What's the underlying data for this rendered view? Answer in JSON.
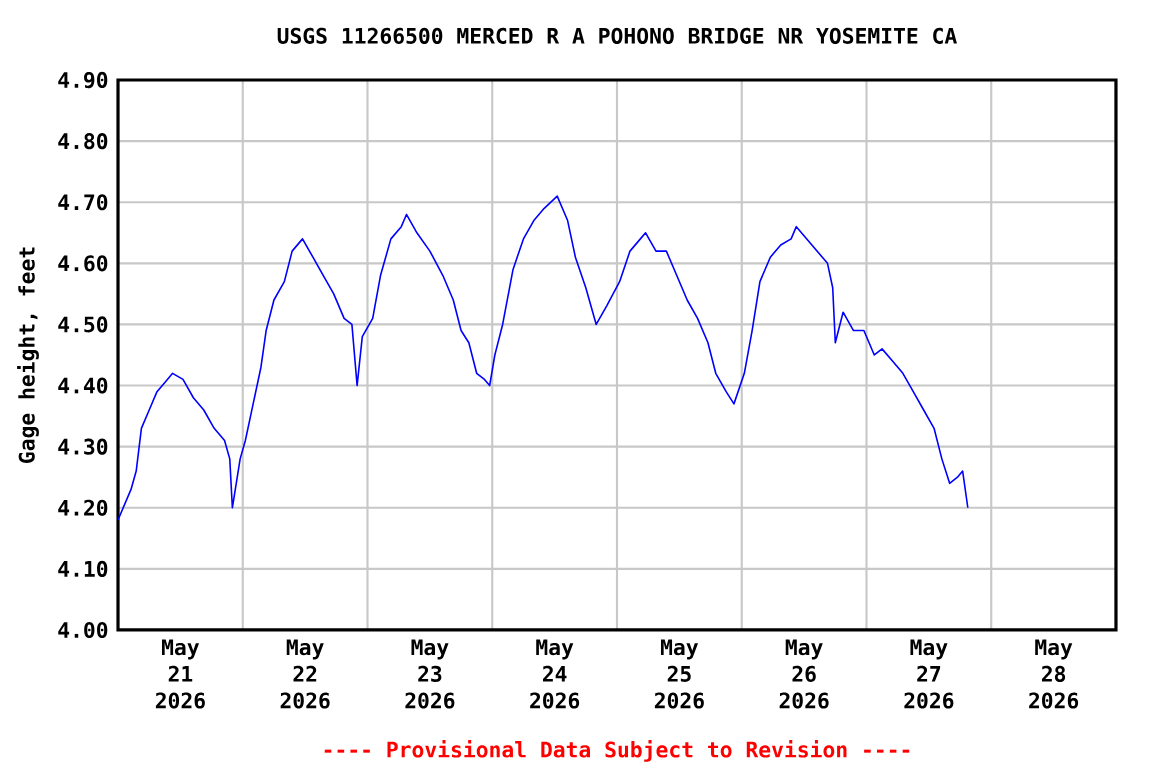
{
  "chart_data": {
    "type": "line",
    "title": "USGS 11266500 MERCED R A POHONO BRIDGE NR YOSEMITE CA",
    "ylabel": "Gage height, feet",
    "annotations": [
      "---- Provisional Data Subject to Revision ----"
    ],
    "xlim": [
      "2026-05-21T00:00",
      "2026-05-29T00:00"
    ],
    "xticks": [
      {
        "value": "2026-05-21T00:00",
        "label": null
      },
      {
        "value": "2026-05-22T00:00",
        "label": null
      },
      {
        "value": "2026-05-23T00:00",
        "label": null
      },
      {
        "value": "2026-05-24T00:00",
        "label": null
      },
      {
        "value": "2026-05-25T00:00",
        "label": null
      },
      {
        "value": "2026-05-26T00:00",
        "label": null
      },
      {
        "value": "2026-05-27T00:00",
        "label": null
      },
      {
        "value": "2026-05-28T00:00",
        "label": null
      },
      {
        "value": "2026-05-29T00:00",
        "label": null
      },
      {
        "value": "2026-05-21T12:00",
        "label": "May 21 2026"
      },
      {
        "value": "2026-05-22T12:00",
        "label": "May 22 2026"
      },
      {
        "value": "2026-05-23T12:00",
        "label": "May 23 2026"
      },
      {
        "value": "2026-05-24T12:00",
        "label": "May 24 2026"
      },
      {
        "value": "2026-05-25T12:00",
        "label": "May 25 2026"
      },
      {
        "value": "2026-05-26T12:00",
        "label": "May 26 2026"
      },
      {
        "value": "2026-05-27T12:00",
        "label": "May 27 2026"
      },
      {
        "value": "2026-05-28T12:00",
        "label": "May 28 2026"
      }
    ],
    "ylim": [
      4.0,
      4.9
    ],
    "yticks": [
      {
        "value": 4.0,
        "label": "4.00"
      },
      {
        "value": 4.1,
        "label": "4.10"
      },
      {
        "value": 4.2,
        "label": "4.20"
      },
      {
        "value": 4.3,
        "label": "4.30"
      },
      {
        "value": 4.4,
        "label": "4.40"
      },
      {
        "value": 4.5,
        "label": "4.50"
      },
      {
        "value": 4.6,
        "label": "4.60"
      },
      {
        "value": 4.7,
        "label": "4.70"
      },
      {
        "value": 4.8,
        "label": "4.80"
      },
      {
        "value": 4.9,
        "label": "4.90"
      }
    ],
    "grid": true,
    "marker": "none",
    "line_style": "solid",
    "series": [
      {
        "color": "#0000ff",
        "x": [
          "2026-05-21T00:00",
          "2026-05-21T02:30",
          "2026-05-21T03:30",
          "2026-05-21T04:30",
          "2026-05-21T06:00",
          "2026-05-21T07:30",
          "2026-05-21T09:30",
          "2026-05-21T10:30",
          "2026-05-21T12:30",
          "2026-05-21T14:30",
          "2026-05-21T16:30",
          "2026-05-21T18:30",
          "2026-05-21T20:30",
          "2026-05-21T21:30",
          "2026-05-21T22:00",
          "2026-05-21T23:30",
          "2026-05-22T00:30",
          "2026-05-22T02:00",
          "2026-05-22T03:30",
          "2026-05-22T04:30",
          "2026-05-22T06:00",
          "2026-05-22T08:00",
          "2026-05-22T09:30",
          "2026-05-22T11:30",
          "2026-05-22T13:30",
          "2026-05-22T15:30",
          "2026-05-22T17:30",
          "2026-05-22T19:30",
          "2026-05-22T21:00",
          "2026-05-22T22:00",
          "2026-05-22T23:00",
          "2026-05-23T01:00",
          "2026-05-23T02:30",
          "2026-05-23T04:30",
          "2026-05-23T06:30",
          "2026-05-23T07:30",
          "2026-05-23T09:30",
          "2026-05-23T12:00",
          "2026-05-23T14:30",
          "2026-05-23T16:30",
          "2026-05-23T18:00",
          "2026-05-23T19:30",
          "2026-05-23T21:00",
          "2026-05-23T22:30",
          "2026-05-23T23:30",
          "2026-05-24T00:30",
          "2026-05-24T02:00",
          "2026-05-24T04:00",
          "2026-05-24T06:00",
          "2026-05-24T08:00",
          "2026-05-24T10:00",
          "2026-05-24T12:30",
          "2026-05-24T14:30",
          "2026-05-24T16:00",
          "2026-05-24T18:00",
          "2026-05-24T20:00",
          "2026-05-24T22:00",
          "2026-05-25T00:30",
          "2026-05-25T02:30",
          "2026-05-25T04:30",
          "2026-05-25T05:30",
          "2026-05-25T07:30",
          "2026-05-25T09:30",
          "2026-05-25T11:30",
          "2026-05-25T13:30",
          "2026-05-25T15:30",
          "2026-05-25T17:30",
          "2026-05-25T19:00",
          "2026-05-25T21:00",
          "2026-05-25T22:30",
          "2026-05-26T00:30",
          "2026-05-26T02:00",
          "2026-05-26T03:30",
          "2026-05-26T05:30",
          "2026-05-26T07:30",
          "2026-05-26T09:30",
          "2026-05-26T10:30",
          "2026-05-26T12:30",
          "2026-05-26T14:30",
          "2026-05-26T16:30",
          "2026-05-26T17:30",
          "2026-05-26T18:00",
          "2026-05-26T19:30",
          "2026-05-26T21:30",
          "2026-05-26T23:30",
          "2026-05-27T01:30",
          "2026-05-27T03:00",
          "2026-05-27T05:00",
          "2026-05-27T07:00",
          "2026-05-27T09:00",
          "2026-05-27T11:00",
          "2026-05-27T13:00",
          "2026-05-27T14:30",
          "2026-05-27T16:00",
          "2026-05-27T17:30",
          "2026-05-27T18:30",
          "2026-05-27T19:30"
        ],
        "values": [
          4.18,
          4.23,
          4.26,
          4.33,
          4.36,
          4.39,
          4.41,
          4.42,
          4.41,
          4.38,
          4.36,
          4.33,
          4.31,
          4.28,
          4.2,
          4.28,
          4.31,
          4.37,
          4.43,
          4.49,
          4.54,
          4.57,
          4.62,
          4.64,
          4.61,
          4.58,
          4.55,
          4.51,
          4.5,
          4.4,
          4.48,
          4.51,
          4.58,
          4.64,
          4.66,
          4.68,
          4.65,
          4.62,
          4.58,
          4.54,
          4.49,
          4.47,
          4.42,
          4.41,
          4.4,
          4.45,
          4.5,
          4.59,
          4.64,
          4.67,
          4.69,
          4.71,
          4.67,
          4.61,
          4.56,
          4.5,
          4.53,
          4.57,
          4.62,
          4.64,
          4.65,
          4.62,
          4.62,
          4.58,
          4.54,
          4.51,
          4.47,
          4.42,
          4.39,
          4.37,
          4.42,
          4.49,
          4.57,
          4.61,
          4.63,
          4.64,
          4.66,
          4.64,
          4.62,
          4.6,
          4.56,
          4.47,
          4.52,
          4.49,
          4.49,
          4.45,
          4.46,
          4.44,
          4.42,
          4.39,
          4.36,
          4.33,
          4.28,
          4.24,
          4.25,
          4.26,
          4.2
        ]
      }
    ]
  }
}
